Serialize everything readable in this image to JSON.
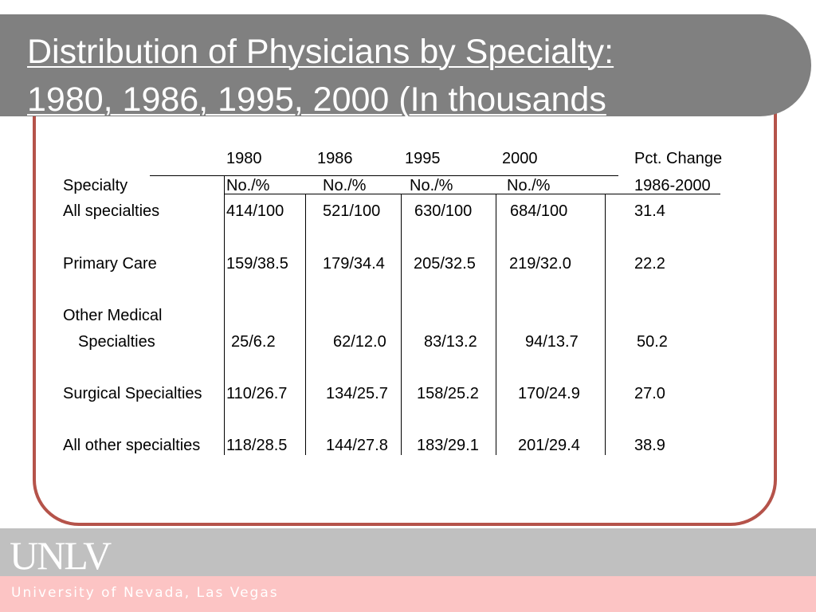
{
  "slide": {
    "title_line1": "Distribution of Physicians by Specialty:",
    "title_line2": "1980, 1986, 1995, 2000 (In thousands"
  },
  "table": {
    "years": [
      "1980",
      "1986",
      "1995",
      "2000"
    ],
    "pct_change_header": "Pct. Change",
    "specialty_header": "Specialty",
    "sub_headers": [
      "No./%",
      "No./%",
      "No./%",
      "No./%"
    ],
    "pct_range": "1986-2000",
    "rows": [
      {
        "label": "All specialties",
        "values": [
          "414/100",
          "521/100",
          "630/100",
          "684/100"
        ],
        "pct": "31.4"
      },
      {
        "label": "Primary Care",
        "values": [
          "159/38.5",
          "179/34.4",
          "205/32.5",
          "219/32.0"
        ],
        "pct": "22.2"
      },
      {
        "label": "Other Medical",
        "label2": "Specialties",
        "values": [
          "25/6.2",
          "62/12.0",
          "83/13.2",
          "94/13.7"
        ],
        "pct": "50.2"
      },
      {
        "label": "Surgical Specialties",
        "values": [
          "110/26.7",
          "134/25.7",
          "158/25.2",
          "170/24.9"
        ],
        "pct": "27.0"
      },
      {
        "label": "All other specialties",
        "values": [
          "118/28.5",
          "144/27.8",
          "183/29.1",
          "201/29.4"
        ],
        "pct": "38.9"
      }
    ]
  },
  "footer": {
    "logo_text": "UNLV",
    "university_name": "University of Nevada, Las Vegas"
  }
}
